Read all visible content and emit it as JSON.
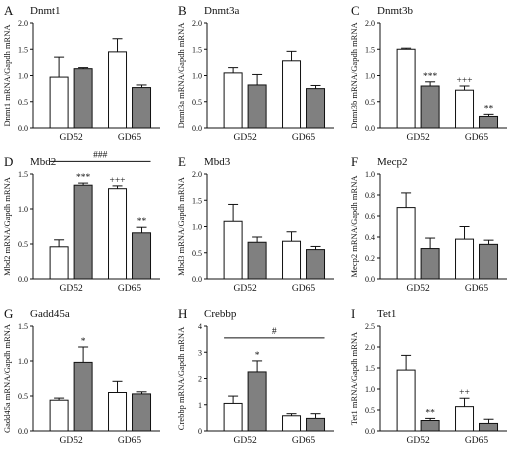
{
  "chart_data": [
    {
      "type": "bar",
      "panel": "A",
      "title": "Dnmt1",
      "ylabel": "Dnmt1 mRNA/Gapdh mRNA",
      "ylim": [
        0,
        2.0
      ],
      "yticks": [
        0,
        0.5,
        1.0,
        1.5,
        2.0
      ],
      "tick_labels": [
        "0.0",
        "0.5",
        "1.0",
        "1.5",
        "2.0"
      ],
      "categories": [
        "GD52",
        "GD65"
      ],
      "series": [
        {
          "fill": "#ffffff",
          "values": [
            0.97,
            1.45
          ],
          "errors": [
            0.38,
            0.25
          ]
        },
        {
          "fill": "#808080",
          "values": [
            1.13,
            0.77
          ],
          "errors": [
            0.02,
            0.05
          ]
        }
      ],
      "annotations": [],
      "brackets": []
    },
    {
      "type": "bar",
      "panel": "B",
      "title": "Dnmt3a",
      "ylabel": "Dnmt3a mRNA/Gapdh mRNA",
      "ylim": [
        0,
        2.0
      ],
      "yticks": [
        0,
        0.5,
        1.0,
        1.5,
        2.0
      ],
      "tick_labels": [
        "0.0",
        "0.5",
        "1.0",
        "1.5",
        "2.0"
      ],
      "categories": [
        "GD52",
        "GD65"
      ],
      "series": [
        {
          "fill": "#ffffff",
          "values": [
            1.05,
            1.28
          ],
          "errors": [
            0.1,
            0.18
          ]
        },
        {
          "fill": "#808080",
          "values": [
            0.82,
            0.75
          ],
          "errors": [
            0.2,
            0.06
          ]
        }
      ],
      "annotations": [],
      "brackets": []
    },
    {
      "type": "bar",
      "panel": "C",
      "title": "Dnmt3b",
      "ylabel": "Dnmt3b mRNA/Gapdh mRNA",
      "ylim": [
        0,
        2.0
      ],
      "yticks": [
        0,
        0.5,
        1.0,
        1.5,
        2.0
      ],
      "tick_labels": [
        "0.0",
        "0.5",
        "1.0",
        "1.5",
        "2.0"
      ],
      "categories": [
        "GD52",
        "GD65"
      ],
      "series": [
        {
          "fill": "#ffffff",
          "values": [
            1.5,
            0.72
          ],
          "errors": [
            0.02,
            0.08
          ]
        },
        {
          "fill": "#808080",
          "values": [
            0.8,
            0.22
          ],
          "errors": [
            0.08,
            0.04
          ]
        }
      ],
      "annotations": [
        {
          "text": "***",
          "category": 0,
          "series": 1
        },
        {
          "text": "+++",
          "category": 1,
          "series": 0
        },
        {
          "text": "**",
          "category": 1,
          "series": 1
        }
      ],
      "brackets": []
    },
    {
      "type": "bar",
      "panel": "D",
      "title": "Mbd2",
      "ylabel": "Mbd2 mRNA/Gapdh mRNA",
      "ylim": [
        0,
        1.5
      ],
      "yticks": [
        0,
        0.5,
        1.0,
        1.5
      ],
      "tick_labels": [
        "0.0",
        "0.5",
        "1.0",
        "1.5"
      ],
      "categories": [
        "GD52",
        "GD65"
      ],
      "series": [
        {
          "fill": "#ffffff",
          "values": [
            0.46,
            1.29
          ],
          "errors": [
            0.1,
            0.04
          ]
        },
        {
          "fill": "#808080",
          "values": [
            1.34,
            0.66
          ],
          "errors": [
            0.03,
            0.08
          ]
        }
      ],
      "annotations": [
        {
          "text": "***",
          "category": 0,
          "series": 1
        },
        {
          "text": "+++",
          "category": 1,
          "series": 0
        },
        {
          "text": "**",
          "category": 1,
          "series": 1
        }
      ],
      "brackets": [
        {
          "text": "###",
          "y": 1.68
        }
      ]
    },
    {
      "type": "bar",
      "panel": "E",
      "title": "Mbd3",
      "ylabel": "Mbd3 mRNA/Gapdh mRNA",
      "ylim": [
        0,
        2.0
      ],
      "yticks": [
        0,
        0.5,
        1.0,
        1.5,
        2.0
      ],
      "tick_labels": [
        "0.0",
        "0.5",
        "1.0",
        "1.5",
        "2.0"
      ],
      "categories": [
        "GD52",
        "GD65"
      ],
      "series": [
        {
          "fill": "#ffffff",
          "values": [
            1.1,
            0.72
          ],
          "errors": [
            0.32,
            0.18
          ]
        },
        {
          "fill": "#808080",
          "values": [
            0.7,
            0.56
          ],
          "errors": [
            0.1,
            0.06
          ]
        }
      ],
      "annotations": [],
      "brackets": []
    },
    {
      "type": "bar",
      "panel": "F",
      "title": "Mecp2",
      "ylabel": "Mecp2 mRNA/Gapdh mRNA",
      "ylim": [
        0,
        1.0
      ],
      "yticks": [
        0,
        0.2,
        0.4,
        0.6,
        0.8,
        1.0
      ],
      "tick_labels": [
        "0.0",
        "0.2",
        "0.4",
        "0.6",
        "0.8",
        "1.0"
      ],
      "categories": [
        "GD52",
        "GD65"
      ],
      "series": [
        {
          "fill": "#ffffff",
          "values": [
            0.68,
            0.38
          ],
          "errors": [
            0.14,
            0.12
          ]
        },
        {
          "fill": "#808080",
          "values": [
            0.29,
            0.33
          ],
          "errors": [
            0.1,
            0.04
          ]
        }
      ],
      "annotations": [],
      "brackets": []
    },
    {
      "type": "bar",
      "panel": "G",
      "title": "Gadd45a",
      "ylabel": "Gadd45a mRNA/Gapdh mRNA",
      "ylim": [
        0,
        1.5
      ],
      "yticks": [
        0,
        0.5,
        1.0,
        1.5
      ],
      "tick_labels": [
        "0.0",
        "0.5",
        "1.0",
        "1.5"
      ],
      "categories": [
        "GD52",
        "GD65"
      ],
      "series": [
        {
          "fill": "#ffffff",
          "values": [
            0.44,
            0.55
          ],
          "errors": [
            0.03,
            0.16
          ]
        },
        {
          "fill": "#808080",
          "values": [
            0.98,
            0.53
          ],
          "errors": [
            0.22,
            0.03
          ]
        }
      ],
      "annotations": [
        {
          "text": "*",
          "category": 0,
          "series": 1
        }
      ],
      "brackets": []
    },
    {
      "type": "bar",
      "panel": "H",
      "title": "Crebbp",
      "ylabel": "Crebbp mRNA/Gapdh mRNA",
      "ylim": [
        0,
        4
      ],
      "yticks": [
        0,
        1,
        2,
        3,
        4
      ],
      "tick_labels": [
        "0",
        "1",
        "2",
        "3",
        "4"
      ],
      "categories": [
        "GD52",
        "GD65"
      ],
      "series": [
        {
          "fill": "#ffffff",
          "values": [
            1.05,
            0.58
          ],
          "errors": [
            0.28,
            0.08
          ]
        },
        {
          "fill": "#808080",
          "values": [
            2.25,
            0.48
          ],
          "errors": [
            0.42,
            0.18
          ]
        }
      ],
      "annotations": [
        {
          "text": "*",
          "category": 0,
          "series": 1
        }
      ],
      "brackets": [
        {
          "text": "#",
          "y": 3.55
        }
      ]
    },
    {
      "type": "bar",
      "panel": "I",
      "title": "Tet1",
      "ylabel": "Tet1 mRNA/Gapdh mRNA",
      "ylim": [
        0,
        2.5
      ],
      "yticks": [
        0,
        0.5,
        1.0,
        1.5,
        2.0,
        2.5
      ],
      "tick_labels": [
        "0.0",
        "0.5",
        "1.0",
        "1.5",
        "2.0",
        "2.5"
      ],
      "categories": [
        "GD52",
        "GD65"
      ],
      "series": [
        {
          "fill": "#ffffff",
          "values": [
            1.45,
            0.58
          ],
          "errors": [
            0.35,
            0.2
          ]
        },
        {
          "fill": "#808080",
          "values": [
            0.25,
            0.18
          ],
          "errors": [
            0.05,
            0.1
          ]
        }
      ],
      "annotations": [
        {
          "text": "**",
          "category": 0,
          "series": 1
        },
        {
          "text": "++",
          "category": 1,
          "series": 0
        }
      ],
      "brackets": []
    }
  ]
}
